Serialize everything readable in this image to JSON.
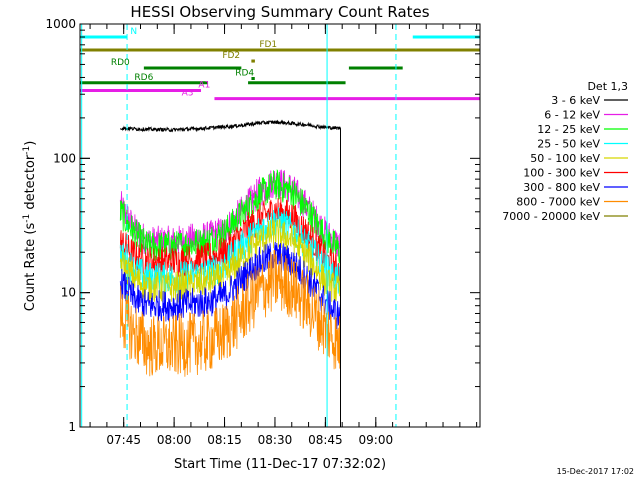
{
  "chart_data": {
    "type": "line",
    "title": "HESSI Observing Summary Count Rates",
    "xlabel": "Start Time (11-Dec-17 07:32:02)",
    "ylabel": "Count Rate (s",
    "ylabel_sup": "-1",
    "ylabel_end": " detector",
    "ylabel_sup2": "-1",
    "ylabel_close": ")",
    "x_unit": "minutes of day",
    "xlim": [
      452.0,
      571.0
    ],
    "y_scale": "log",
    "ylim": [
      1,
      1000
    ],
    "grid": false,
    "legend_placement": "right",
    "yticks": [
      {
        "value": 1,
        "label": "1"
      },
      {
        "value": 10,
        "label": "10"
      },
      {
        "value": 100,
        "label": "100"
      },
      {
        "value": 1000,
        "label": "1000"
      }
    ],
    "xticks": [
      {
        "value": 465,
        "label": "07:45"
      },
      {
        "value": 480,
        "label": "08:00"
      },
      {
        "value": 495,
        "label": "08:15"
      },
      {
        "value": 510,
        "label": "08:30"
      },
      {
        "value": 525,
        "label": "08:45"
      },
      {
        "value": 540,
        "label": "09:00"
      }
    ],
    "legend_title": "Det 1,3",
    "series": [
      {
        "name": "3 - 6 keV",
        "color": "#000000",
        "x": [
          464,
          470,
          480,
          490,
          500,
          505,
          510,
          515,
          520,
          525,
          528,
          529.5
        ],
        "values": [
          168,
          165,
          163,
          168,
          176,
          183,
          186,
          182,
          177,
          170,
          168,
          168
        ]
      },
      {
        "name": "6 - 12 keV",
        "color": "#e61ee6",
        "x": [
          464,
          468,
          472,
          480,
          490,
          495,
          500,
          505,
          510,
          515,
          520,
          525,
          529.5
        ],
        "values": [
          45,
          30,
          24,
          24,
          26,
          29,
          40,
          55,
          68,
          60,
          42,
          28,
          22
        ]
      },
      {
        "name": "12 - 25 keV",
        "color": "#00ff00",
        "x": [
          464,
          468,
          472,
          480,
          490,
          495,
          500,
          505,
          510,
          515,
          520,
          525,
          529.5
        ],
        "values": [
          40,
          28,
          22,
          22,
          24,
          28,
          38,
          52,
          64,
          57,
          40,
          26,
          20
        ]
      },
      {
        "name": "25 - 50 keV",
        "color": "#00ffff",
        "x": [
          464,
          468,
          472,
          480,
          490,
          495,
          500,
          505,
          510,
          515,
          520,
          525,
          529.5
        ],
        "values": [
          19,
          15,
          13,
          13,
          14,
          16,
          22,
          29,
          34,
          30,
          22,
          15,
          12
        ]
      },
      {
        "name": "50 - 100 keV",
        "color": "#d6d600",
        "x": [
          464,
          468,
          472,
          480,
          490,
          495,
          500,
          505,
          510,
          515,
          520,
          525,
          529.5
        ],
        "values": [
          17,
          13,
          11,
          11,
          12,
          13,
          18,
          24,
          28,
          25,
          18,
          12,
          10
        ]
      },
      {
        "name": "100 - 300 keV",
        "color": "#ff0000",
        "x": [
          464,
          468,
          472,
          480,
          490,
          495,
          500,
          505,
          510,
          515,
          520,
          525,
          529.5
        ],
        "values": [
          24,
          19,
          17,
          17,
          18,
          20,
          27,
          35,
          41,
          37,
          27,
          18,
          14
        ]
      },
      {
        "name": "300 - 800 keV",
        "color": "#0000ff",
        "x": [
          464,
          468,
          472,
          480,
          490,
          495,
          500,
          505,
          510,
          515,
          520,
          525,
          529.5
        ],
        "values": [
          12,
          9,
          8,
          8,
          8.5,
          9.5,
          12.5,
          16.5,
          19,
          17,
          12.5,
          8.5,
          6.5
        ]
      },
      {
        "name": "800 - 7000 keV",
        "color": "#ff8c00",
        "x": [
          464,
          468,
          472,
          480,
          490,
          495,
          500,
          505,
          510,
          515,
          520,
          525,
          529.5
        ],
        "values": [
          7,
          5,
          4,
          4,
          4.3,
          5,
          7,
          10,
          12.5,
          11,
          8,
          5.5,
          4
        ]
      },
      {
        "name": "7000 - 20000 keV",
        "color": "#808000",
        "x": [],
        "values": []
      }
    ],
    "flag_bars": [
      {
        "label": "N",
        "color": "#00ffff",
        "y": 800,
        "segments": [
          [
            452,
            466
          ],
          [
            551,
            571
          ]
        ],
        "label_x": 468
      },
      {
        "label": "FD1",
        "color": "#808000",
        "y": 640,
        "segments": [
          [
            452,
            571
          ]
        ],
        "label_x": 508
      },
      {
        "label": "FD2",
        "color": "#808000",
        "y": 530,
        "segments": [
          [
            503,
            504
          ],
          [
            503,
            504
          ]
        ],
        "label_x": 497
      },
      {
        "label": "RD0",
        "color": "#008000",
        "y": 470,
        "segments": [
          [
            471,
            500
          ],
          [
            532,
            548
          ]
        ],
        "label_x": 464
      },
      {
        "label": "RD4",
        "color": "#008000",
        "y": 393,
        "segments": [
          [
            503,
            504
          ]
        ],
        "label_x": 501
      },
      {
        "label": "RD6",
        "color": "#008000",
        "y": 365,
        "segments": [
          [
            452,
            490
          ],
          [
            502,
            531
          ]
        ],
        "label_x": 471
      },
      {
        "label": "A1",
        "color": "#e61ee6",
        "y": 320,
        "segments": [
          [
            452,
            488
          ]
        ],
        "label_x": 489
      },
      {
        "label": "A3",
        "color": "#e61ee6",
        "y": 278,
        "segments": [
          [
            492,
            571
          ]
        ],
        "label_x": 484
      }
    ],
    "vertical_lines": [
      {
        "x": 452.5,
        "color": "#00ffff",
        "style": "solid"
      },
      {
        "x": 466,
        "color": "#00ffff",
        "style": "dashed"
      },
      {
        "x": 525.5,
        "color": "#00ffff",
        "style": "solid"
      },
      {
        "x": 546,
        "color": "#00ffff",
        "style": "dashed"
      }
    ],
    "annotation": "15-Dec-2017 17:02"
  }
}
